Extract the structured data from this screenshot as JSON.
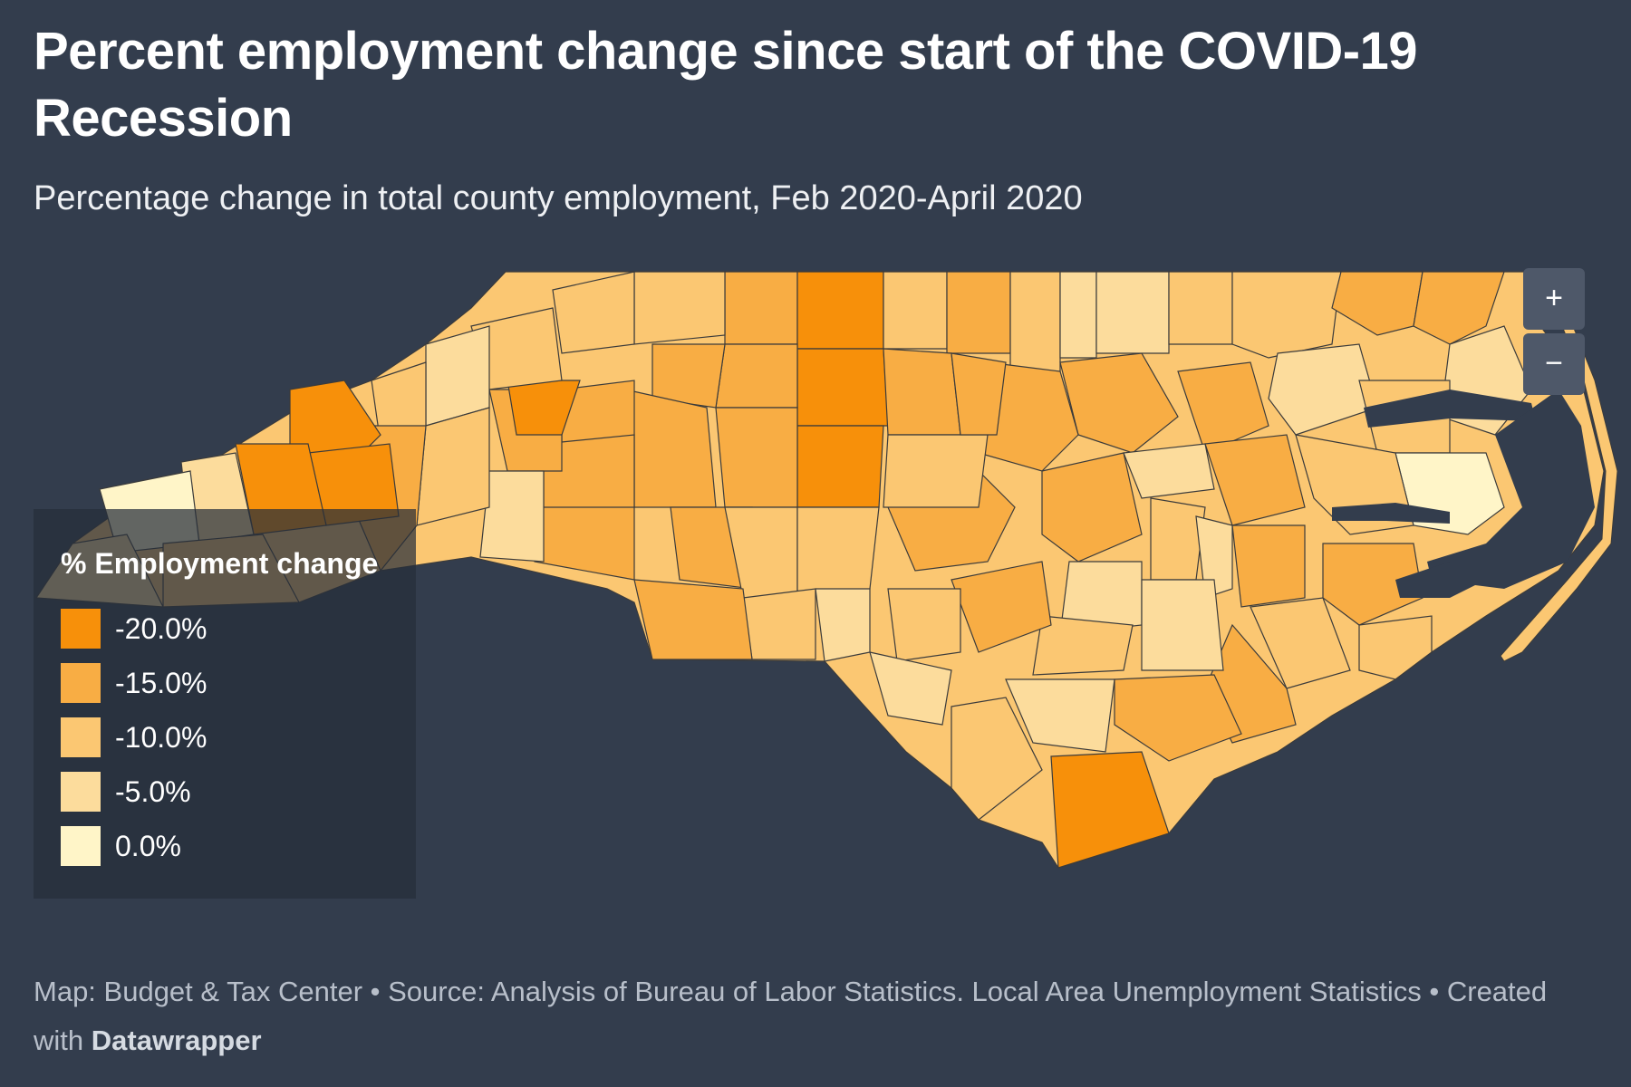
{
  "title": "Percent employment change since start of the COVID-19 Recession",
  "subtitle": "Percentage change in total county employment, Feb 2020-April 2020",
  "map": {
    "region": "North Carolina",
    "unit": "county",
    "legend": {
      "title": "% Employment change",
      "items": [
        {
          "label": "-20.0%",
          "value": -20.0,
          "color": "#f7900a"
        },
        {
          "label": "-15.0%",
          "value": -15.0,
          "color": "#f8ad44"
        },
        {
          "label": "-10.0%",
          "value": -10.0,
          "color": "#fbc772"
        },
        {
          "label": "-5.0%",
          "value": -5.0,
          "color": "#fcdc9c"
        },
        {
          "label": "0.0%",
          "value": 0.0,
          "color": "#fff5c8"
        }
      ]
    },
    "colors": {
      "background": "#333d4d",
      "water": "#333d4d",
      "county_border": "#3b3b3b"
    },
    "zoom_controls": {
      "zoom_in": "+",
      "zoom_out": "−"
    }
  },
  "footer": {
    "text": "Map: Budget & Tax Center • Source: Analysis of Bureau of Labor Statistics. Local Area Unemployment Statistics • Created with ",
    "tool": "Datawrapper"
  }
}
